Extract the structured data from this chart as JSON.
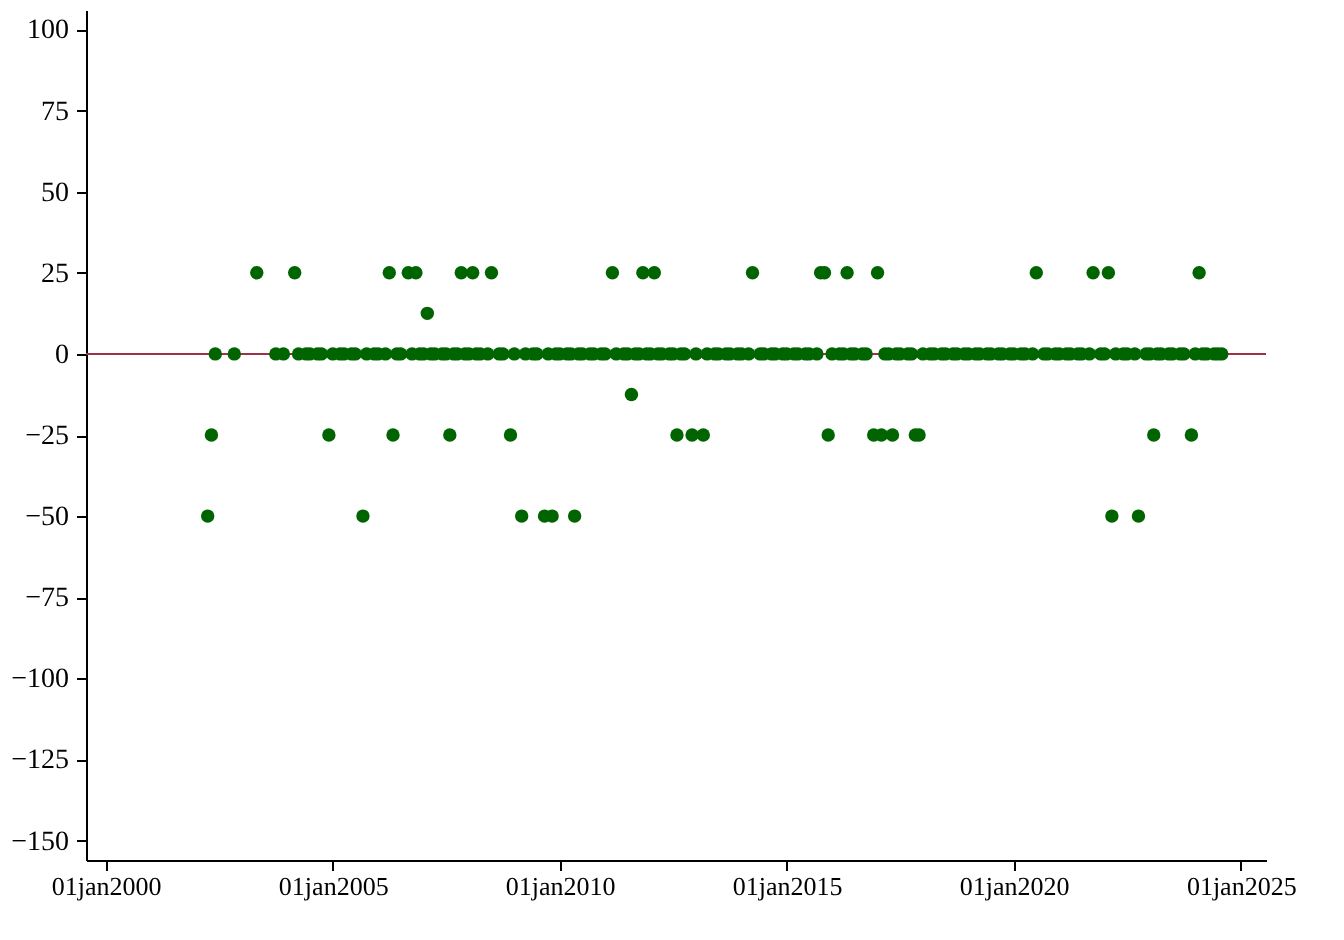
{
  "chart_data": {
    "type": "scatter",
    "series": [
      {
        "color": "#006400",
        "x": [
          "2002-04",
          "2002-05",
          "2002-06",
          "2002-11",
          "2003-05",
          "2003-10",
          "2003-12",
          "2004-03",
          "2004-04",
          "2004-06",
          "2004-07",
          "2004-09",
          "2004-10",
          "2004-12",
          "2005-01",
          "2005-03",
          "2005-04",
          "2005-06",
          "2005-07",
          "2005-09",
          "2005-10",
          "2005-12",
          "2006-01",
          "2006-03",
          "2006-04",
          "2006-05",
          "2006-06",
          "2006-07",
          "2006-09",
          "2006-10",
          "2006-11",
          "2006-12",
          "2007-01",
          "2007-02",
          "2007-03",
          "2007-04",
          "2007-06",
          "2007-07",
          "2007-08",
          "2007-09",
          "2007-10",
          "2007-11",
          "2007-12",
          "2008-01",
          "2008-02",
          "2008-03",
          "2008-04",
          "2008-06",
          "2008-07",
          "2008-09",
          "2008-10",
          "2008-12",
          "2009-01",
          "2009-03",
          "2009-04",
          "2009-06",
          "2009-07",
          "2009-09",
          "2009-10",
          "2009-11",
          "2009-12",
          "2010-01",
          "2010-03",
          "2010-04",
          "2010-05",
          "2010-06",
          "2010-07",
          "2010-09",
          "2010-10",
          "2010-12",
          "2011-01",
          "2011-03",
          "2011-04",
          "2011-06",
          "2011-07",
          "2011-08",
          "2011-09",
          "2011-10",
          "2011-11",
          "2011-12",
          "2012-01",
          "2012-02",
          "2012-03",
          "2012-04",
          "2012-06",
          "2012-07",
          "2012-08",
          "2012-09",
          "2012-10",
          "2012-12",
          "2013-01",
          "2013-03",
          "2013-04",
          "2013-06",
          "2013-07",
          "2013-09",
          "2013-10",
          "2013-12",
          "2014-01",
          "2014-03",
          "2014-04",
          "2014-06",
          "2014-07",
          "2014-09",
          "2014-10",
          "2014-12",
          "2015-01",
          "2015-03",
          "2015-04",
          "2015-06",
          "2015-07",
          "2015-09",
          "2015-10",
          "2015-11",
          "2015-12",
          "2016-01",
          "2016-03",
          "2016-04",
          "2016-05",
          "2016-06",
          "2016-07",
          "2016-09",
          "2016-10",
          "2016-12",
          "2017-01",
          "2017-02",
          "2017-03",
          "2017-04",
          "2017-05",
          "2017-06",
          "2017-07",
          "2017-09",
          "2017-10",
          "2017-11",
          "2017-12",
          "2018-01",
          "2018-03",
          "2018-04",
          "2018-06",
          "2018-07",
          "2018-09",
          "2018-10",
          "2018-12",
          "2019-01",
          "2019-03",
          "2019-04",
          "2019-06",
          "2019-07",
          "2019-09",
          "2019-10",
          "2019-12",
          "2020-01",
          "2020-03",
          "2020-04",
          "2020-06",
          "2020-07",
          "2020-09",
          "2020-10",
          "2020-12",
          "2021-01",
          "2021-03",
          "2021-04",
          "2021-06",
          "2021-07",
          "2021-09",
          "2021-10",
          "2021-12",
          "2022-01",
          "2022-02",
          "2022-03",
          "2022-04",
          "2022-06",
          "2022-07",
          "2022-09",
          "2022-10",
          "2022-12",
          "2023-01",
          "2023-02",
          "2023-03",
          "2023-04",
          "2023-06",
          "2023-07",
          "2023-09",
          "2023-10",
          "2023-12",
          "2024-01",
          "2024-02",
          "2024-03",
          "2024-04",
          "2024-06",
          "2024-07",
          "2024-08"
        ],
        "values": [
          -50,
          -25,
          0,
          0,
          25,
          0,
          0,
          25,
          0,
          0,
          0,
          0,
          0,
          -25,
          0,
          0,
          0,
          0,
          0,
          -50,
          0,
          0,
          0,
          0,
          25,
          -25,
          0,
          0,
          25,
          0,
          25,
          0,
          0,
          12.5,
          0,
          0,
          0,
          0,
          -25,
          0,
          0,
          25,
          0,
          0,
          25,
          0,
          0,
          0,
          25,
          0,
          0,
          -25,
          0,
          -50,
          0,
          0,
          0,
          -50,
          0,
          -50,
          0,
          0,
          0,
          0,
          -50,
          0,
          0,
          0,
          0,
          0,
          0,
          25,
          0,
          0,
          0,
          -12.5,
          0,
          0,
          25,
          0,
          0,
          25,
          0,
          0,
          0,
          0,
          -25,
          0,
          0,
          -25,
          0,
          -25,
          0,
          0,
          0,
          0,
          0,
          0,
          0,
          0,
          25,
          0,
          0,
          0,
          0,
          0,
          0,
          0,
          0,
          0,
          0,
          0,
          25,
          25,
          -25,
          0,
          0,
          0,
          25,
          0,
          0,
          0,
          0,
          -25,
          25,
          -25,
          0,
          0,
          -25,
          0,
          0,
          0,
          0,
          -25,
          -25,
          0,
          0,
          0,
          0,
          0,
          0,
          0,
          0,
          0,
          0,
          0,
          0,
          0,
          0,
          0,
          0,
          0,
          0,
          0,
          0,
          25,
          0,
          0,
          0,
          0,
          0,
          0,
          0,
          0,
          0,
          25,
          0,
          0,
          25,
          -50,
          0,
          0,
          0,
          0,
          -50,
          0,
          0,
          -25,
          0,
          0,
          0,
          0,
          0,
          0,
          -25,
          0,
          25,
          0,
          0,
          0,
          0,
          0
        ]
      }
    ],
    "xlim": [
      "1999-07-27",
      "2025-07-23"
    ],
    "xticks": [
      {
        "value": "2000-01-01",
        "label": "01jan2000"
      },
      {
        "value": "2005-01-01",
        "label": "01jan2005"
      },
      {
        "value": "2010-01-01",
        "label": "01jan2010"
      },
      {
        "value": "2015-01-01",
        "label": "01jan2015"
      },
      {
        "value": "2020-01-01",
        "label": "01jan2020"
      },
      {
        "value": "2025-01-01",
        "label": "01jan2025"
      }
    ],
    "ylim": [
      -156,
      106
    ],
    "yticks": [
      100,
      75,
      50,
      25,
      0,
      -25,
      -50,
      -75,
      -100,
      -125,
      -150
    ],
    "ref_lines": [
      {
        "axis": "y",
        "value": 0,
        "color": "#a0304a"
      }
    ],
    "marker": "circle",
    "grid": false,
    "legend": false
  }
}
